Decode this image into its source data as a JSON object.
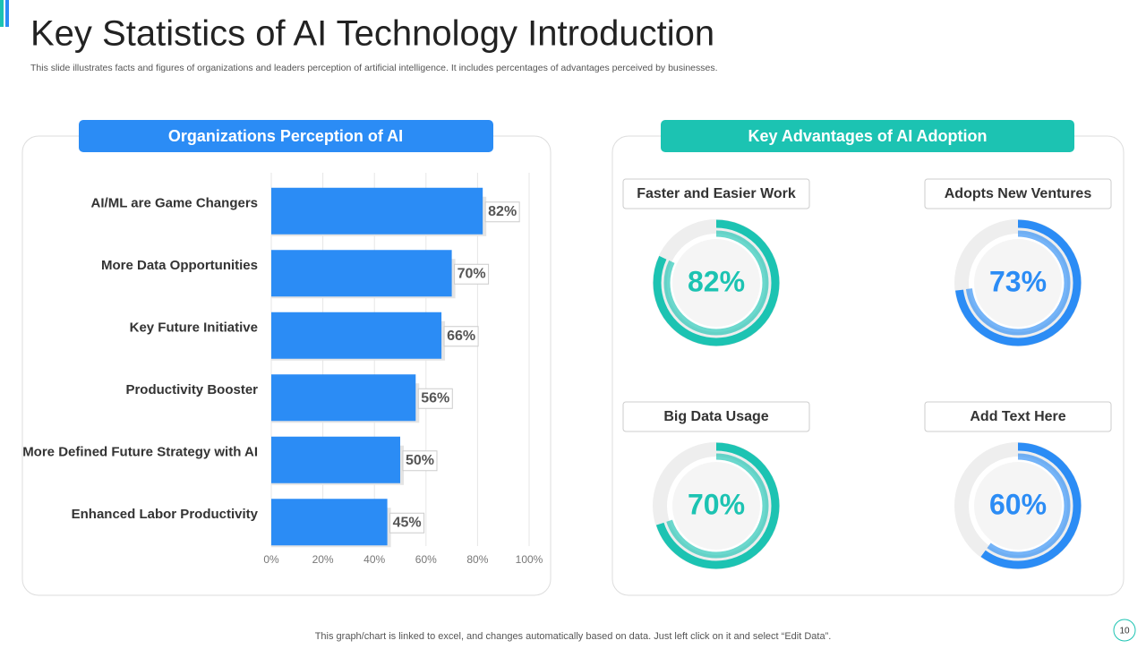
{
  "title": "Key Statistics of AI Technology Introduction",
  "subtitle": "This slide illustrates facts and figures of organizations and leaders perception of artificial intelligence. It includes percentages of advantages perceived by businesses.",
  "footer": "This graph/chart is linked to excel,  and changes automatically based on data. Just left click on it and select “Edit Data”.",
  "page_number": "10",
  "chart_data": [
    {
      "type": "bar",
      "orientation": "horizontal",
      "title": "Organizations Perception of AI",
      "categories": [
        "AI/ML are Game Changers",
        "More Data Opportunities",
        "Key Future Initiative",
        "Productivity Booster",
        "More Defined Future Strategy with AI",
        "Enhanced Labor Productivity"
      ],
      "values": [
        82,
        70,
        66,
        56,
        50,
        45
      ],
      "value_labels": [
        "82%",
        "70%",
        "66%",
        "56%",
        "50%",
        "45%"
      ],
      "color": "#2b8cf5",
      "xlim": [
        0,
        100
      ],
      "xticks": [
        {
          "value": 0,
          "label": "0%"
        },
        {
          "value": 20,
          "label": "20%"
        },
        {
          "value": 40,
          "label": "40%"
        },
        {
          "value": 60,
          "label": "60%"
        },
        {
          "value": 80,
          "label": "80%"
        },
        {
          "value": 100,
          "label": "100%"
        }
      ],
      "grid": true
    },
    {
      "type": "donut",
      "title": "Key Advantages of AI Adoption",
      "categories": [
        "Faster and Easier Work",
        "Adopts New Ventures",
        "Big Data Usage",
        "Add  Text Here"
      ],
      "values": [
        82,
        73,
        70,
        60
      ],
      "value_labels": [
        "82%",
        "73%",
        "70%",
        "60%"
      ],
      "colors": [
        "#1cc3b2",
        "#2b8cf5",
        "#1cc3b2",
        "#2b8cf5"
      ]
    }
  ]
}
